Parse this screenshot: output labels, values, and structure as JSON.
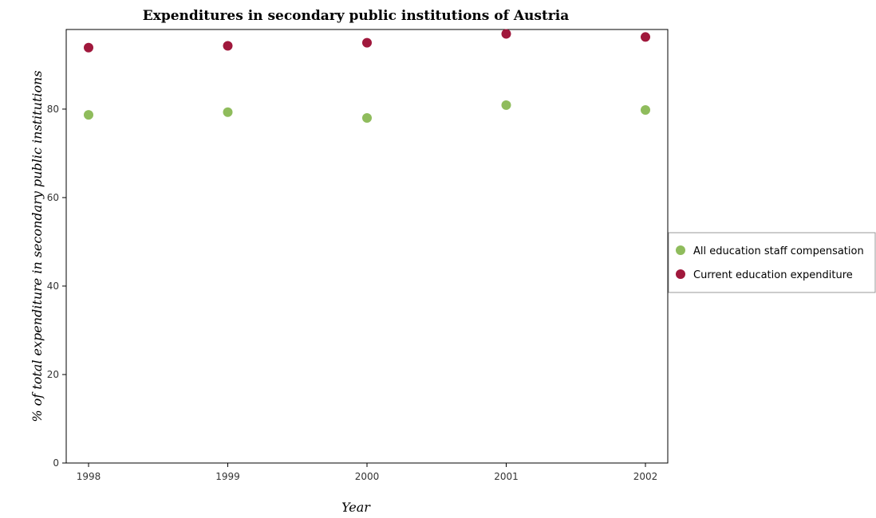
{
  "chart_data": {
    "type": "scatter",
    "title": "Expenditures in secondary public institutions of Austria",
    "xlabel": "Year",
    "ylabel": "% of total expenditure in secondary public institutions",
    "categories": [
      "1998",
      "1999",
      "2000",
      "2001",
      "2002"
    ],
    "yticks": [
      "0",
      "20",
      "40",
      "60",
      "80"
    ],
    "ylim": [
      0,
      98
    ],
    "grid": false,
    "legend_position": "right",
    "series": [
      {
        "name": "All education staff compensation",
        "color": "#8fbc5c",
        "values": [
          78.7,
          79.3,
          78.0,
          80.9,
          79.8
        ]
      },
      {
        "name": "Current education expenditure",
        "color": "#a0183c",
        "values": [
          93.9,
          94.3,
          95.0,
          97.0,
          96.3
        ]
      }
    ]
  }
}
